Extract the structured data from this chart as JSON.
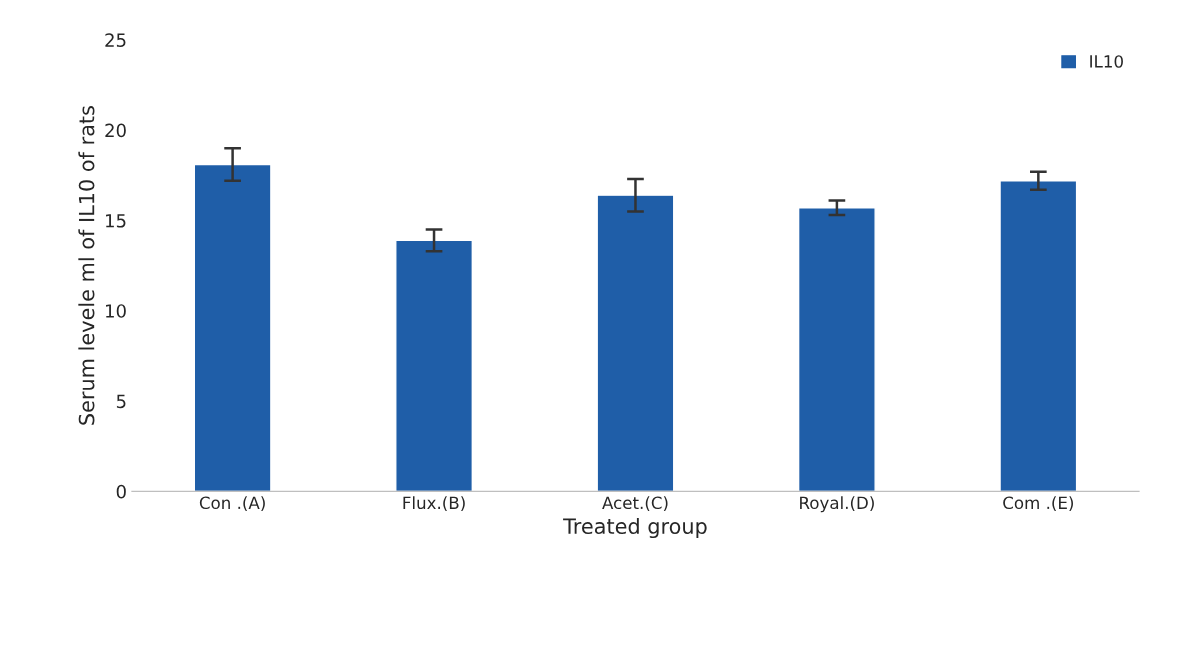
{
  "chart_data": {
    "type": "bar",
    "xlabel": "Treated group",
    "ylabel": "Serum levele ml of IL10 of rats",
    "categories": [
      "Con .(A)",
      "Flux.(B)",
      "Acet.(C)",
      "Royal.(D)",
      "Com .(E)"
    ],
    "series": [
      {
        "name": "IL10",
        "color": "#1f5ea8",
        "values": [
          18.1,
          13.9,
          16.4,
          15.7,
          17.2
        ],
        "errors": [
          0.9,
          0.6,
          0.9,
          0.4,
          0.5
        ]
      }
    ],
    "ylim": [
      0,
      25
    ],
    "yticks": [
      0,
      5,
      10,
      15,
      20,
      25
    ],
    "grid": false,
    "legend": "top right"
  }
}
